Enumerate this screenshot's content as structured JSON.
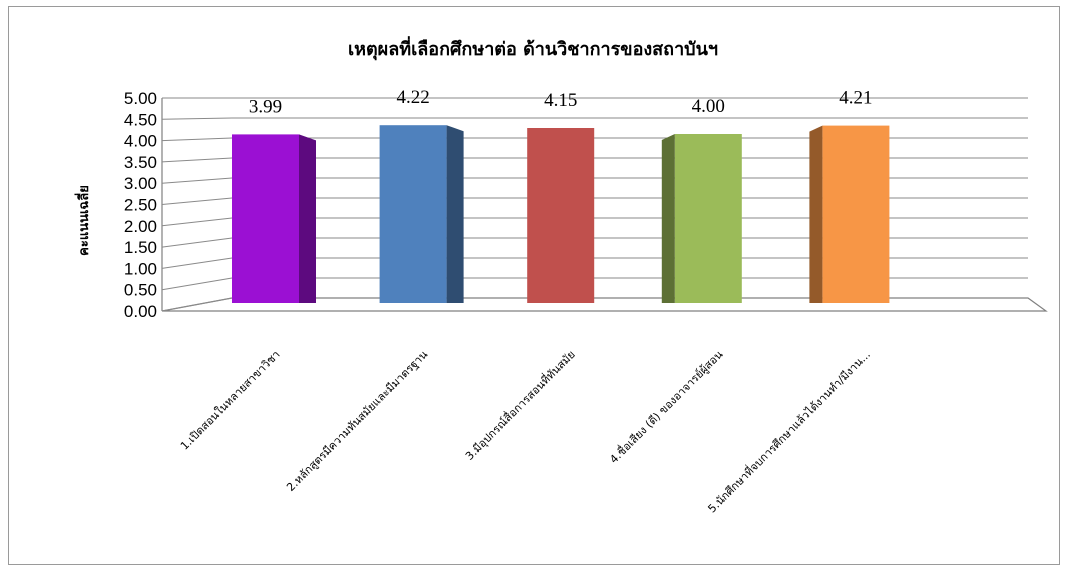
{
  "chart_data": {
    "type": "bar",
    "title": "เหตุผลที่เลือกศึกษาต่อ ด้านวิชาการของสถาบันฯ",
    "ylabel": "คะแนนเฉลี่ย",
    "xlabel": "",
    "ylim": [
      0,
      5
    ],
    "yticks": [
      "0.00",
      "0.50",
      "1.00",
      "1.50",
      "2.00",
      "2.50",
      "3.00",
      "3.50",
      "4.00",
      "4.50",
      "5.00"
    ],
    "categories": [
      "1.เปิดสอนในหลายสาขาวิชา",
      "2.หลักสูตรมีความทันสมัยและมีมาตรฐาน",
      "3.มีอุปกรณ์สื่อการสอนที่ทันสมัย",
      "4.ชื่อเสียง (ดี) ของอาจารย์ผู้สอน",
      "5.นักศึกษาที่จบการศึกษาแล้วได้งานทำ/มีงาน..."
    ],
    "values": [
      3.99,
      4.22,
      4.15,
      4.0,
      4.21
    ],
    "value_labels": [
      "3.99",
      "4.22",
      "4.15",
      "4.00",
      "4.21"
    ],
    "bar_colors": [
      "#9b10d3",
      "#4f81bd",
      "#c0504d",
      "#9bbb59",
      "#f79646"
    ],
    "grid": true,
    "style": "3d-column"
  }
}
